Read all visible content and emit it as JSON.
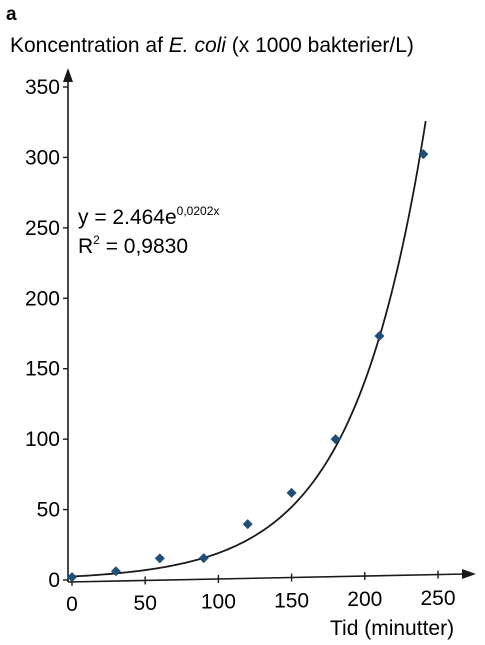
{
  "panel_label": "a",
  "chart_data": {
    "type": "scatter",
    "ylabel_prefix": "Koncentration af ",
    "ylabel_italic": "E. coli",
    "ylabel_suffix": " (x 1000 bakterier/L)",
    "xlabel": "Tid (minutter)",
    "xlim": [
      0,
      260
    ],
    "ylim": [
      0,
      355
    ],
    "xticks": [
      "0",
      "50",
      "100",
      "150",
      "200",
      "250"
    ],
    "yticks": [
      "0",
      "50",
      "100",
      "150",
      "200",
      "250",
      "300",
      "350"
    ],
    "x": [
      0,
      30,
      60,
      90,
      120,
      150,
      180,
      210,
      240
    ],
    "y": [
      2,
      6,
      15,
      15,
      39,
      61,
      99,
      172,
      301
    ],
    "trendline": {
      "type": "exponential",
      "a": 2.464,
      "b": 0.0202,
      "x_range": [
        0,
        240
      ]
    },
    "equation_main": "y = 2.464e",
    "equation_exp": "0,0202x",
    "r2_label": "R",
    "r2_sup": "2",
    "r2_value": " = 0,9830",
    "marker_color": "#1f4e79",
    "line_color": "#1a1a1a"
  }
}
